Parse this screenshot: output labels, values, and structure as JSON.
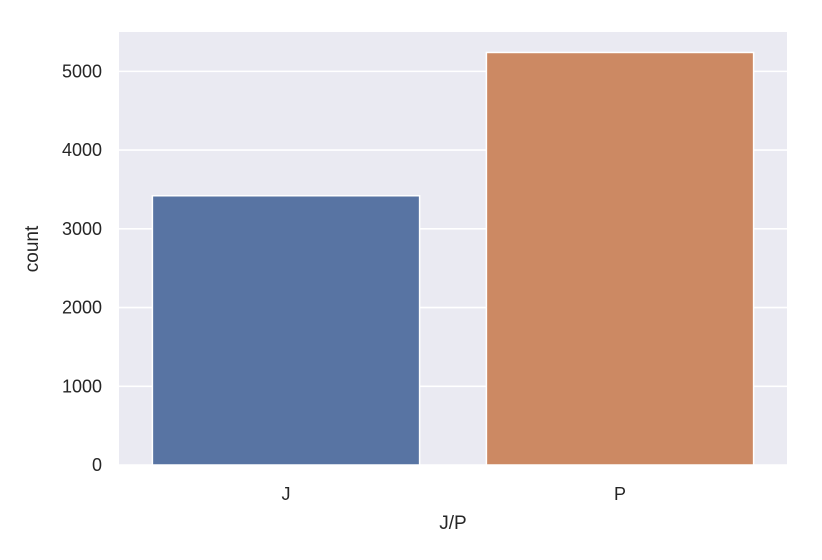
{
  "chart_data": {
    "type": "bar",
    "categories": [
      "J",
      "P"
    ],
    "values": [
      3420,
      5240
    ],
    "xlabel": "J/P",
    "ylabel": "count",
    "ylim": [
      0,
      5500
    ],
    "yticks": [
      0,
      1000,
      2000,
      3000,
      4000,
      5000
    ],
    "grid": true,
    "legend": "none",
    "colors": [
      "#5874a3",
      "#cc8963"
    ],
    "background_color": "#eaeaf2",
    "grid_color": "#ffffff"
  }
}
